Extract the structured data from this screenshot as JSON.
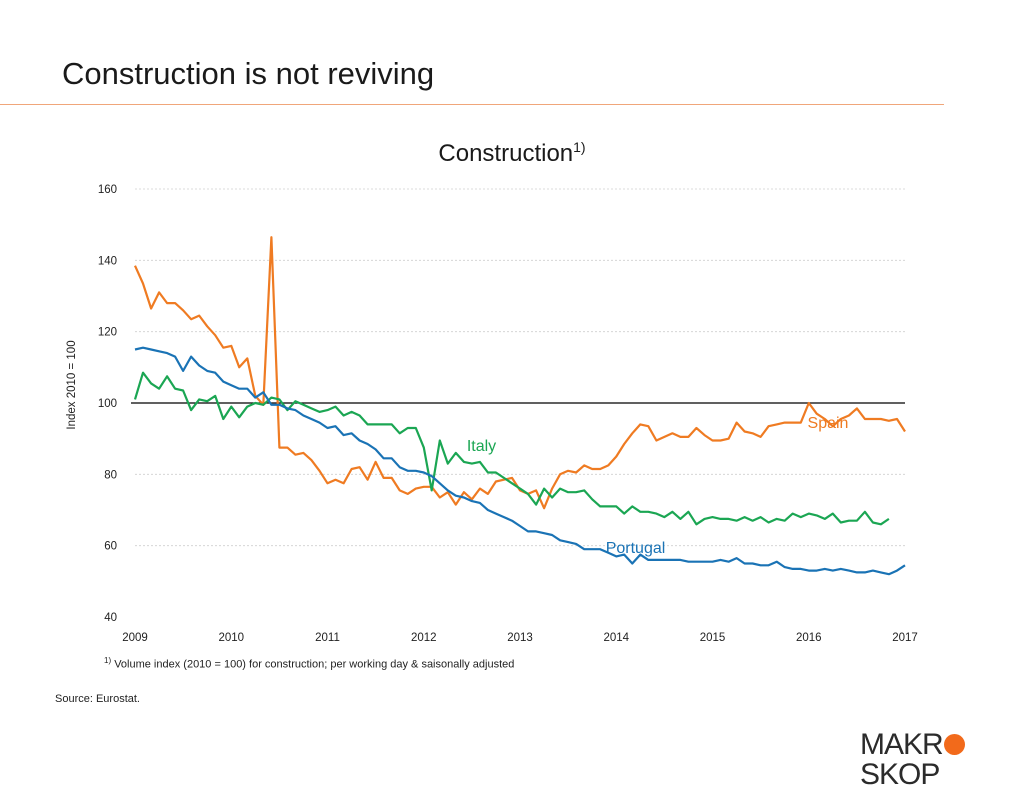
{
  "slide": {
    "title": "Construction is not reviving"
  },
  "footnote": {
    "marker": "1)",
    "text": "Volume index (2010 = 100) for construction; per working day & saisonally adjusted"
  },
  "source": "Source: Eurostat.",
  "logo": {
    "left": "MAKR",
    "right": "SKOP",
    "accent_color": "#f26a1b"
  },
  "chart_data": {
    "type": "line",
    "title": "Construction",
    "title_superscript": "1)",
    "xlabel": "",
    "ylabel": "Index 2010 = 100",
    "xlim": [
      2009,
      2017
    ],
    "ylim": [
      40,
      160
    ],
    "yticks": [
      40,
      60,
      80,
      100,
      120,
      140,
      160
    ],
    "xticks": [
      "2009",
      "2010",
      "2011",
      "2012",
      "2013",
      "2014",
      "2015",
      "2016",
      "2017"
    ],
    "reference_line": 100,
    "grid": true,
    "series": [
      {
        "name": "Spain",
        "color": "#ef7b22",
        "x": [
          2009.0,
          2009.083,
          2009.167,
          2009.25,
          2009.333,
          2009.417,
          2009.5,
          2009.583,
          2009.667,
          2009.75,
          2009.833,
          2009.917,
          2010.0,
          2010.083,
          2010.167,
          2010.25,
          2010.333,
          2010.417,
          2010.5,
          2010.583,
          2010.667,
          2010.75,
          2010.833,
          2010.917,
          2011.0,
          2011.083,
          2011.167,
          2011.25,
          2011.333,
          2011.417,
          2011.5,
          2011.583,
          2011.667,
          2011.75,
          2011.833,
          2011.917,
          2012.0,
          2012.083,
          2012.167,
          2012.25,
          2012.333,
          2012.417,
          2012.5,
          2012.583,
          2012.667,
          2012.75,
          2012.833,
          2012.917,
          2013.0,
          2013.083,
          2013.167,
          2013.25,
          2013.333,
          2013.417,
          2013.5,
          2013.583,
          2013.667,
          2013.75,
          2013.833,
          2013.917,
          2014.0,
          2014.083,
          2014.167,
          2014.25,
          2014.333,
          2014.417,
          2014.5,
          2014.583,
          2014.667,
          2014.75,
          2014.833,
          2014.917,
          2015.0,
          2015.083,
          2015.167,
          2015.25,
          2015.333,
          2015.417,
          2015.5,
          2015.583,
          2015.667,
          2015.75,
          2015.833,
          2015.917,
          2016.0,
          2016.083,
          2016.167,
          2016.25,
          2016.333,
          2016.417,
          2016.5,
          2016.583,
          2016.667,
          2016.75,
          2016.833,
          2016.917,
          2017.0
        ],
        "values": [
          138.5,
          133.5,
          126.5,
          131,
          128,
          128,
          126,
          123.5,
          124.5,
          121.5,
          119,
          115.5,
          116,
          110,
          112.5,
          102,
          99.5,
          146.5,
          87.5,
          87.5,
          85.5,
          86,
          84,
          81,
          77.5,
          78.5,
          77.5,
          81.5,
          82,
          78.5,
          83.5,
          79,
          79,
          75.5,
          74.5,
          76,
          76.5,
          76.5,
          73.5,
          75,
          71.5,
          75,
          73,
          76,
          74.5,
          78,
          78.5,
          79,
          75.5,
          74.5,
          75.5,
          70.5,
          76,
          80,
          81,
          80.5,
          82.5,
          81.5,
          81.5,
          82.5,
          85,
          88.5,
          91.5,
          94,
          93.5,
          89.5,
          90.5,
          91.5,
          90.5,
          90.5,
          93,
          91,
          89.5,
          89.5,
          90,
          94.5,
          92,
          91.5,
          90.5,
          93.5,
          94,
          94.5,
          94.5,
          94.5,
          100,
          97,
          95.5,
          93.5,
          95.5,
          96.5,
          98.5,
          95.5,
          95.5,
          95.5,
          95,
          95.5,
          92
        ],
        "label_pos": [
          2016.2,
          93
        ]
      },
      {
        "name": "Italy",
        "color": "#1ba653",
        "x": [
          2009.0,
          2009.083,
          2009.167,
          2009.25,
          2009.333,
          2009.417,
          2009.5,
          2009.583,
          2009.667,
          2009.75,
          2009.833,
          2009.917,
          2010.0,
          2010.083,
          2010.167,
          2010.25,
          2010.333,
          2010.417,
          2010.5,
          2010.583,
          2010.667,
          2010.75,
          2010.833,
          2010.917,
          2011.0,
          2011.083,
          2011.167,
          2011.25,
          2011.333,
          2011.417,
          2011.5,
          2011.583,
          2011.667,
          2011.75,
          2011.833,
          2011.917,
          2012.0,
          2012.083,
          2012.167,
          2012.25,
          2012.333,
          2012.417,
          2012.5,
          2012.583,
          2012.667,
          2012.75,
          2012.833,
          2012.917,
          2013.0,
          2013.083,
          2013.167,
          2013.25,
          2013.333,
          2013.417,
          2013.5,
          2013.583,
          2013.667,
          2013.75,
          2013.833,
          2013.917,
          2014.0,
          2014.083,
          2014.167,
          2014.25,
          2014.333,
          2014.417,
          2014.5,
          2014.583,
          2014.667,
          2014.75,
          2014.833,
          2014.917,
          2015.0,
          2015.083,
          2015.167,
          2015.25,
          2015.333,
          2015.417,
          2015.5,
          2015.583,
          2015.667,
          2015.75,
          2015.833,
          2015.917,
          2016.0,
          2016.083,
          2016.167,
          2016.25,
          2016.333,
          2016.417,
          2016.5,
          2016.583,
          2016.667,
          2016.75,
          2016.833
        ],
        "values": [
          101,
          108.5,
          105.5,
          104,
          107.5,
          104,
          103.5,
          98,
          101,
          100.5,
          102,
          95.5,
          99,
          96,
          99,
          100,
          99.5,
          101.5,
          101,
          98,
          100.5,
          99.5,
          98.5,
          97.5,
          98,
          99,
          96.5,
          97.5,
          96.5,
          94,
          94,
          94,
          94,
          91.5,
          93,
          93,
          87.5,
          75.5,
          89.5,
          83,
          86,
          83.5,
          83,
          83.5,
          80.5,
          80.5,
          79,
          77.5,
          76,
          74.5,
          71.5,
          76,
          73.5,
          76,
          75,
          75,
          75.5,
          73,
          71,
          71,
          71,
          69,
          71,
          69.5,
          69.5,
          69,
          68,
          69.5,
          67.5,
          69.5,
          66,
          67.5,
          68,
          67.5,
          67.5,
          67,
          68,
          67,
          68,
          66.5,
          67.5,
          67,
          69,
          68,
          69,
          68.5,
          67.5,
          69,
          66.5,
          67,
          67,
          69.5,
          66.5,
          66,
          67.5
        ],
        "label_pos": [
          2012.6,
          86.5
        ]
      },
      {
        "name": "Portugal",
        "color": "#1a73b5",
        "x": [
          2009.0,
          2009.083,
          2009.167,
          2009.25,
          2009.333,
          2009.417,
          2009.5,
          2009.583,
          2009.667,
          2009.75,
          2009.833,
          2009.917,
          2010.0,
          2010.083,
          2010.167,
          2010.25,
          2010.333,
          2010.417,
          2010.5,
          2010.583,
          2010.667,
          2010.75,
          2010.833,
          2010.917,
          2011.0,
          2011.083,
          2011.167,
          2011.25,
          2011.333,
          2011.417,
          2011.5,
          2011.583,
          2011.667,
          2011.75,
          2011.833,
          2011.917,
          2012.0,
          2012.083,
          2012.167,
          2012.25,
          2012.333,
          2012.417,
          2012.5,
          2012.583,
          2012.667,
          2012.75,
          2012.833,
          2012.917,
          2013.0,
          2013.083,
          2013.167,
          2013.25,
          2013.333,
          2013.417,
          2013.5,
          2013.583,
          2013.667,
          2013.75,
          2013.833,
          2013.917,
          2014.0,
          2014.083,
          2014.167,
          2014.25,
          2014.333,
          2014.417,
          2014.5,
          2014.583,
          2014.667,
          2014.75,
          2014.833,
          2014.917,
          2015.0,
          2015.083,
          2015.167,
          2015.25,
          2015.333,
          2015.417,
          2015.5,
          2015.583,
          2015.667,
          2015.75,
          2015.833,
          2015.917,
          2016.0,
          2016.083,
          2016.167,
          2016.25,
          2016.333,
          2016.417,
          2016.5,
          2016.583,
          2016.667,
          2016.75,
          2016.833,
          2016.917,
          2017.0
        ],
        "values": [
          115,
          115.5,
          115,
          114.5,
          114,
          113,
          109,
          113,
          110.5,
          109,
          108.5,
          106,
          105,
          104,
          104,
          101.5,
          103,
          99.5,
          99.5,
          98.5,
          98,
          96.5,
          95.5,
          94.5,
          93,
          93.5,
          91,
          91.5,
          89.5,
          88.5,
          87,
          84.5,
          84.5,
          82,
          81,
          81,
          80.5,
          79.5,
          77.5,
          75.5,
          74,
          73.5,
          72.5,
          72,
          70,
          69,
          68,
          67,
          65.5,
          64,
          64,
          63.5,
          63,
          61.5,
          61,
          60.5,
          59,
          59,
          59,
          58,
          57,
          57.5,
          55,
          57.5,
          56,
          56,
          56,
          56,
          56,
          55.5,
          55.5,
          55.5,
          55.5,
          56,
          55.5,
          56.5,
          55,
          55,
          54.5,
          54.5,
          55.5,
          54,
          53.5,
          53.5,
          53,
          53,
          53.5,
          53,
          53.5,
          53,
          52.5,
          52.5,
          53,
          52.5,
          52,
          53,
          54.5
        ],
        "label_pos": [
          2014.2,
          58
        ]
      }
    ]
  }
}
